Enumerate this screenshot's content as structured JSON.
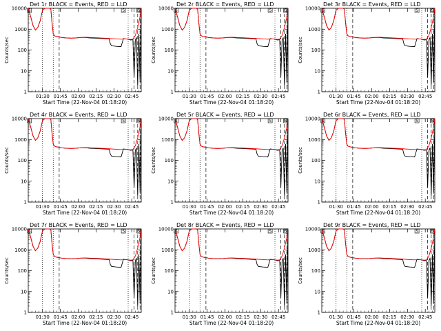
{
  "figure": {
    "panels": [
      {
        "det": "1r"
      },
      {
        "det": "2r"
      },
      {
        "det": "3r"
      },
      {
        "det": "4r"
      },
      {
        "det": "5r"
      },
      {
        "det": "6r"
      },
      {
        "det": "7r"
      },
      {
        "det": "8r"
      },
      {
        "det": "9r"
      }
    ]
  },
  "chart_data": {
    "type": "line",
    "title_template": "Det {det} BLACK = Events, RED = LLD",
    "xlabel": "Start Time (22-Nov-04 01:18:20)",
    "ylabel": "Counts/sec",
    "yscale": "log",
    "ylim": [
      1,
      10000
    ],
    "yticks": [
      "1",
      "10",
      "100",
      "1000",
      "10000"
    ],
    "xlim_minutes": [
      0,
      95
    ],
    "xticks": [
      {
        "min": 12,
        "label": "01:30"
      },
      {
        "min": 27,
        "label": "01:45"
      },
      {
        "min": 42,
        "label": "02:00"
      },
      {
        "min": 57,
        "label": "02:15"
      },
      {
        "min": 72,
        "label": "02:30"
      },
      {
        "min": 87,
        "label": "02:45"
      }
    ],
    "markers": {
      "dotted": [
        12,
        21,
        84
      ],
      "dashed": [
        26,
        89,
        92,
        94
      ],
      "flags": [
        "S",
        "S",
        "S"
      ]
    },
    "series": [
      {
        "name": "Events",
        "color": "#000000",
        "x": [
          0,
          2,
          4,
          6,
          8,
          10,
          12,
          14,
          16,
          18,
          19,
          20,
          21,
          22,
          24,
          26,
          28,
          32,
          36,
          40,
          44,
          48,
          52,
          56,
          60,
          64,
          68,
          69,
          70,
          74,
          78,
          80,
          82,
          84,
          86,
          88,
          89,
          90,
          91,
          92,
          93,
          94,
          95
        ],
        "y": [
          10000,
          4000,
          1500,
          900,
          1200,
          2500,
          8000,
          10000,
          10000,
          10000,
          9000,
          2000,
          600,
          480,
          440,
          420,
          400,
          380,
          370,
          380,
          400,
          400,
          380,
          370,
          360,
          350,
          340,
          200,
          160,
          150,
          145,
          350,
          340,
          330,
          300,
          310,
          5,
          300,
          400,
          2,
          600,
          3,
          10000
        ]
      },
      {
        "name": "LLD",
        "color": "#ff0000",
        "x": [
          0,
          2,
          4,
          6,
          8,
          10,
          12,
          14,
          16,
          18,
          19,
          20,
          21,
          22,
          24,
          26,
          28,
          32,
          36,
          40,
          44,
          48,
          52,
          56,
          60,
          64,
          68,
          70,
          74,
          78,
          82,
          84,
          86,
          88,
          90,
          92,
          94,
          95
        ],
        "y": [
          10000,
          4000,
          1500,
          900,
          1200,
          2500,
          8000,
          10000,
          10000,
          10000,
          9000,
          2000,
          600,
          480,
          440,
          420,
          400,
          380,
          370,
          380,
          400,
          410,
          400,
          390,
          380,
          370,
          360,
          350,
          340,
          330,
          340,
          330,
          320,
          330,
          500,
          1200,
          4000,
          10000
        ]
      }
    ]
  }
}
